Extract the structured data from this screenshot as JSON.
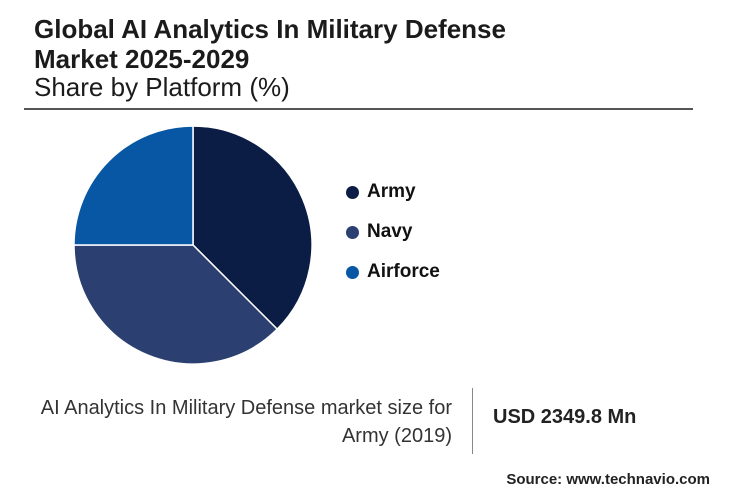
{
  "header": {
    "title_line1": "Global AI Analytics In Military Defense",
    "title_line2": "Market 2025-2029",
    "subtitle": "Share by Platform (%)"
  },
  "chart_data": {
    "type": "pie",
    "title": "Global AI Analytics In Military Defense Market 2025-2029",
    "subtitle": "Share by Platform (%)",
    "categories": [
      "Army",
      "Navy",
      "Airforce"
    ],
    "values": [
      37.5,
      37.5,
      25.0
    ],
    "colors": [
      "#0c1d45",
      "#2b4070",
      "#0857a4"
    ],
    "legend_position": "right"
  },
  "legend": {
    "items": [
      {
        "label": "Army",
        "color": "#0c1d45"
      },
      {
        "label": "Navy",
        "color": "#2b4070"
      },
      {
        "label": "Airforce",
        "color": "#0857a4"
      }
    ]
  },
  "footer": {
    "label_line1": "AI Analytics In Military Defense market size for",
    "label_line2": "Army (2019)",
    "value": "USD 2349.8 Mn",
    "source": "Source: www.technavio.com"
  }
}
